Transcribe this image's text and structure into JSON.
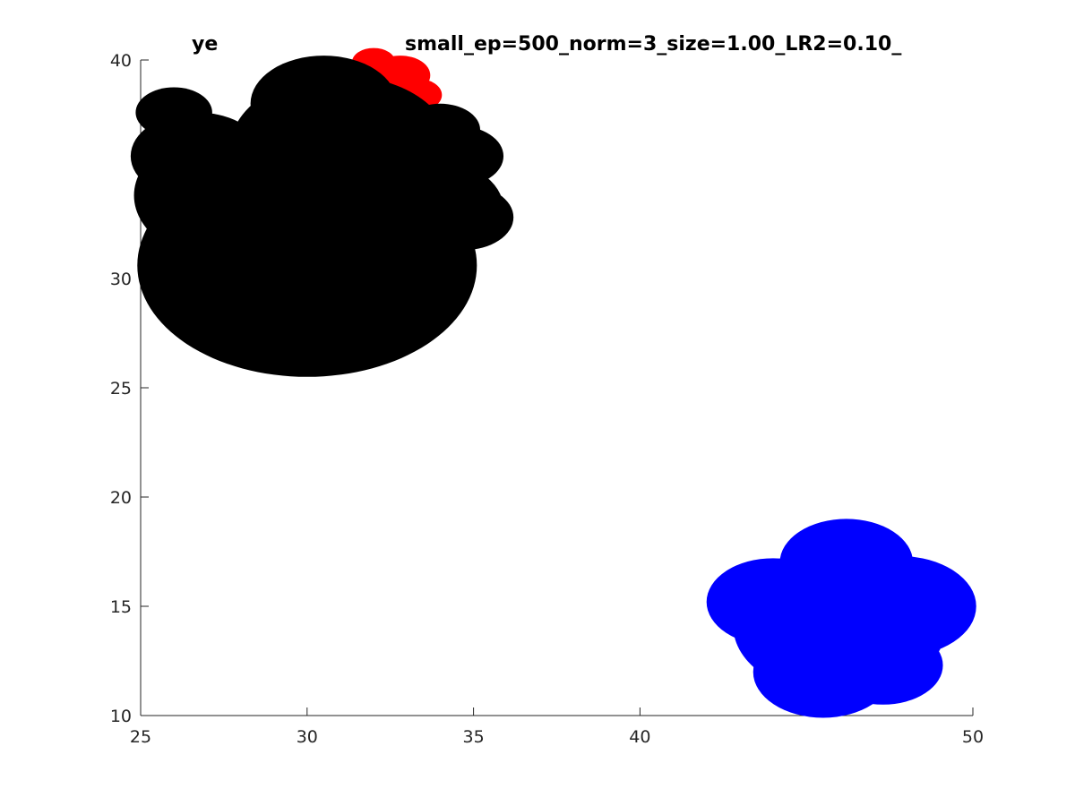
{
  "chart_data": {
    "type": "scatter",
    "title": "ye",
    "title_suffix": "small_ep=500_norm=3_size=1.00_LR2=0.10_",
    "xlabel": "",
    "ylabel": "",
    "xlim": [
      25,
      50
    ],
    "ylim": [
      10,
      40
    ],
    "grid": false,
    "x_ticks": [
      25,
      30,
      35,
      40,
      45,
      50
    ],
    "x_tick_labels": [
      "25",
      "30",
      "35",
      "40",
      "",
      "50"
    ],
    "y_ticks": [
      10,
      15,
      20,
      25,
      30,
      35,
      40
    ],
    "y_tick_labels": [
      "10",
      "15",
      "20",
      "25",
      "30",
      "",
      "40"
    ],
    "series": [
      {
        "color": "#ff0000",
        "points": [
          {
            "x": 32.0,
            "y": 39.9,
            "r": 0.65
          },
          {
            "x": 32.8,
            "y": 39.3,
            "r": 0.9
          },
          {
            "x": 33.3,
            "y": 38.4,
            "r": 0.75
          },
          {
            "x": 32.6,
            "y": 37.3,
            "r": 0.8
          },
          {
            "x": 34.0,
            "y": 35.9,
            "r": 0.7
          }
        ]
      },
      {
        "color": "#000000",
        "points": [
          {
            "x": 30.0,
            "y": 30.6,
            "r": 5.1
          },
          {
            "x": 28.0,
            "y": 33.8,
            "r": 3.2
          },
          {
            "x": 26.0,
            "y": 37.6,
            "r": 1.15
          },
          {
            "x": 26.7,
            "y": 35.6,
            "r": 2.0
          },
          {
            "x": 31.0,
            "y": 36.0,
            "r": 3.3
          },
          {
            "x": 33.6,
            "y": 33.2,
            "r": 2.3
          },
          {
            "x": 34.7,
            "y": 32.8,
            "r": 1.5
          },
          {
            "x": 34.5,
            "y": 35.6,
            "r": 1.4
          },
          {
            "x": 34.0,
            "y": 36.8,
            "r": 1.2
          },
          {
            "x": 30.5,
            "y": 38.0,
            "r": 2.2
          }
        ]
      },
      {
        "color": "#0000ff",
        "points": [
          {
            "x": 46.0,
            "y": 14.1,
            "r": 3.2
          },
          {
            "x": 44.0,
            "y": 15.2,
            "r": 2.0
          },
          {
            "x": 47.8,
            "y": 15.0,
            "r": 2.3
          },
          {
            "x": 46.2,
            "y": 17.0,
            "r": 2.0
          },
          {
            "x": 45.5,
            "y": 12.0,
            "r": 2.1
          },
          {
            "x": 47.3,
            "y": 12.3,
            "r": 1.8
          }
        ]
      }
    ]
  }
}
